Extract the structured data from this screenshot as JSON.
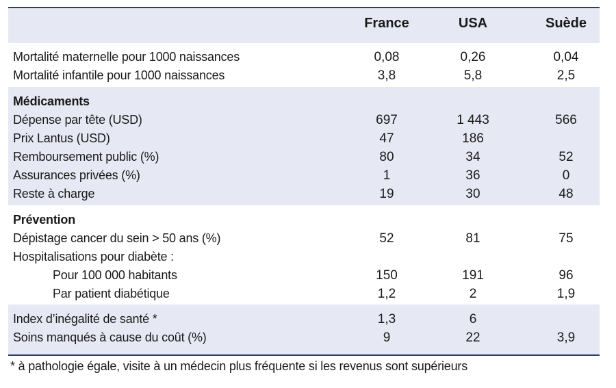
{
  "columns": [
    "France",
    "USA",
    "Suède"
  ],
  "section_basic": {
    "rows": [
      {
        "label": "Mortalité maternelle pour 1000 naissances",
        "values": [
          "0,08",
          "0,26",
          "0,04"
        ]
      },
      {
        "label": "Mortalité infantile pour 1000 naissances",
        "values": [
          "3,8",
          "5,8",
          "2,5"
        ]
      }
    ]
  },
  "section_medicaments": {
    "title": "Médicaments",
    "rows": [
      {
        "label": "Dépense par tête (USD)",
        "values": [
          "697",
          "1 443",
          "566"
        ]
      },
      {
        "label": "Prix Lantus (USD)",
        "values": [
          "47",
          "186",
          ""
        ]
      },
      {
        "label": "Remboursement public (%)",
        "values": [
          "80",
          "34",
          "52"
        ]
      },
      {
        "label": "Assurances privées (%)",
        "values": [
          "1",
          "36",
          "0"
        ]
      },
      {
        "label": "Reste à charge",
        "values": [
          "19",
          "30",
          "48"
        ]
      }
    ]
  },
  "section_prevention": {
    "title": "Prévention",
    "rows": [
      {
        "label": "Dépistage cancer du sein > 50 ans (%)",
        "values": [
          "52",
          "81",
          "75"
        ]
      },
      {
        "label": "Hospitalisations pour diabète :",
        "values": [
          "",
          "",
          ""
        ]
      },
      {
        "label": "Pour 100 000 habitants",
        "values": [
          "150",
          "191",
          "96"
        ]
      },
      {
        "label": "Par patient diabétique",
        "values": [
          "1,2",
          "2",
          "1,9"
        ]
      }
    ]
  },
  "section_inequality": {
    "rows": [
      {
        "label": "Index d’inégalité de santé *",
        "values": [
          "1,3",
          "6",
          ""
        ]
      },
      {
        "label": "Soins manqués à cause du coût (%)",
        "values": [
          "9",
          "22",
          "3,9"
        ]
      }
    ]
  },
  "footnote": "* à pathologie égale, visite à un médecin plus fréquente si les revenus sont supérieurs",
  "colors": {
    "header_band": "#e6e8f3",
    "rule": "#2c3f63"
  }
}
